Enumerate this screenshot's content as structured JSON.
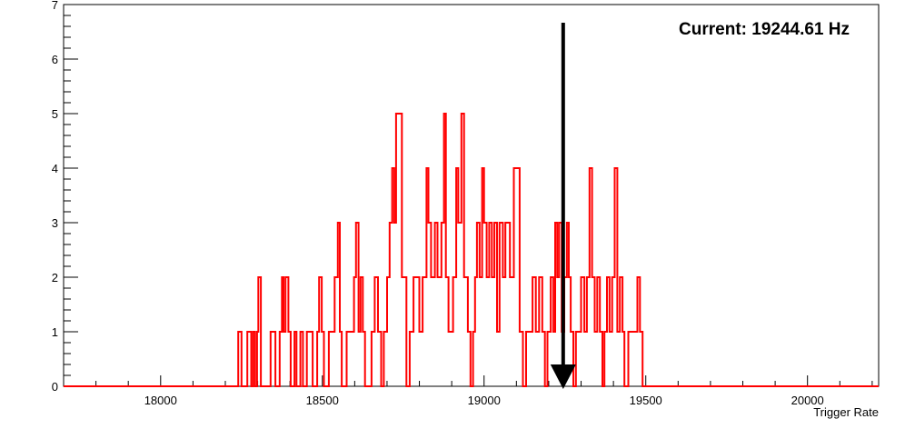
{
  "chart_data": {
    "type": "histogram",
    "title": "",
    "xlabel": "Trigger Rate",
    "ylabel": "",
    "xlim": [
      17700,
      20220
    ],
    "ylim": [
      0,
      7
    ],
    "x_ticks": [
      18000,
      18500,
      19000,
      19500,
      20000
    ],
    "y_ticks": [
      0,
      1,
      2,
      3,
      4,
      5,
      6,
      7
    ],
    "series": [
      {
        "color": "#ff0000",
        "steps": [
          {
            "x": 17700,
            "y": 0
          },
          {
            "x": 18240,
            "y": 1
          },
          {
            "x": 18250,
            "y": 0
          },
          {
            "x": 18268,
            "y": 1
          },
          {
            "x": 18280,
            "y": 0
          },
          {
            "x": 18286,
            "y": 1
          },
          {
            "x": 18292,
            "y": 0
          },
          {
            "x": 18298,
            "y": 1
          },
          {
            "x": 18302,
            "y": 2
          },
          {
            "x": 18310,
            "y": 0
          },
          {
            "x": 18340,
            "y": 1
          },
          {
            "x": 18355,
            "y": 0
          },
          {
            "x": 18368,
            "y": 1
          },
          {
            "x": 18375,
            "y": 2
          },
          {
            "x": 18380,
            "y": 1
          },
          {
            "x": 18386,
            "y": 2
          },
          {
            "x": 18395,
            "y": 1
          },
          {
            "x": 18402,
            "y": 0
          },
          {
            "x": 18414,
            "y": 1
          },
          {
            "x": 18420,
            "y": 0
          },
          {
            "x": 18432,
            "y": 1
          },
          {
            "x": 18440,
            "y": 0
          },
          {
            "x": 18452,
            "y": 1
          },
          {
            "x": 18470,
            "y": 0
          },
          {
            "x": 18484,
            "y": 1
          },
          {
            "x": 18490,
            "y": 2
          },
          {
            "x": 18498,
            "y": 1
          },
          {
            "x": 18505,
            "y": 0
          },
          {
            "x": 18520,
            "y": 1
          },
          {
            "x": 18538,
            "y": 2
          },
          {
            "x": 18548,
            "y": 3
          },
          {
            "x": 18554,
            "y": 1
          },
          {
            "x": 18560,
            "y": 0
          },
          {
            "x": 18575,
            "y": 1
          },
          {
            "x": 18598,
            "y": 2
          },
          {
            "x": 18604,
            "y": 3
          },
          {
            "x": 18612,
            "y": 1
          },
          {
            "x": 18618,
            "y": 2
          },
          {
            "x": 18625,
            "y": 1
          },
          {
            "x": 18632,
            "y": 0
          },
          {
            "x": 18652,
            "y": 1
          },
          {
            "x": 18662,
            "y": 2
          },
          {
            "x": 18672,
            "y": 1
          },
          {
            "x": 18682,
            "y": 0
          },
          {
            "x": 18690,
            "y": 1
          },
          {
            "x": 18700,
            "y": 2
          },
          {
            "x": 18708,
            "y": 3
          },
          {
            "x": 18716,
            "y": 4
          },
          {
            "x": 18722,
            "y": 3
          },
          {
            "x": 18728,
            "y": 5
          },
          {
            "x": 18746,
            "y": 2
          },
          {
            "x": 18760,
            "y": 0
          },
          {
            "x": 18770,
            "y": 1
          },
          {
            "x": 18782,
            "y": 2
          },
          {
            "x": 18800,
            "y": 1
          },
          {
            "x": 18810,
            "y": 2
          },
          {
            "x": 18822,
            "y": 4
          },
          {
            "x": 18828,
            "y": 3
          },
          {
            "x": 18836,
            "y": 2
          },
          {
            "x": 18848,
            "y": 3
          },
          {
            "x": 18856,
            "y": 2
          },
          {
            "x": 18868,
            "y": 3
          },
          {
            "x": 18876,
            "y": 5
          },
          {
            "x": 18882,
            "y": 2
          },
          {
            "x": 18890,
            "y": 1
          },
          {
            "x": 18904,
            "y": 2
          },
          {
            "x": 18914,
            "y": 4
          },
          {
            "x": 18920,
            "y": 3
          },
          {
            "x": 18930,
            "y": 5
          },
          {
            "x": 18938,
            "y": 2
          },
          {
            "x": 18950,
            "y": 1
          },
          {
            "x": 18958,
            "y": 0
          },
          {
            "x": 18966,
            "y": 1
          },
          {
            "x": 18972,
            "y": 2
          },
          {
            "x": 18978,
            "y": 3
          },
          {
            "x": 18986,
            "y": 2
          },
          {
            "x": 18994,
            "y": 4
          },
          {
            "x": 19000,
            "y": 3
          },
          {
            "x": 19008,
            "y": 2
          },
          {
            "x": 19016,
            "y": 3
          },
          {
            "x": 19024,
            "y": 2
          },
          {
            "x": 19032,
            "y": 3
          },
          {
            "x": 19040,
            "y": 1
          },
          {
            "x": 19048,
            "y": 3
          },
          {
            "x": 19058,
            "y": 2
          },
          {
            "x": 19066,
            "y": 3
          },
          {
            "x": 19080,
            "y": 2
          },
          {
            "x": 19092,
            "y": 4
          },
          {
            "x": 19110,
            "y": 1
          },
          {
            "x": 19120,
            "y": 0
          },
          {
            "x": 19130,
            "y": 1
          },
          {
            "x": 19150,
            "y": 2
          },
          {
            "x": 19160,
            "y": 1
          },
          {
            "x": 19170,
            "y": 2
          },
          {
            "x": 19180,
            "y": 1
          },
          {
            "x": 19188,
            "y": 0
          },
          {
            "x": 19196,
            "y": 1
          },
          {
            "x": 19206,
            "y": 2
          },
          {
            "x": 19214,
            "y": 1
          },
          {
            "x": 19220,
            "y": 3
          },
          {
            "x": 19226,
            "y": 2
          },
          {
            "x": 19232,
            "y": 3
          },
          {
            "x": 19240,
            "y": 1
          },
          {
            "x": 19248,
            "y": 2
          },
          {
            "x": 19256,
            "y": 3
          },
          {
            "x": 19262,
            "y": 2
          },
          {
            "x": 19268,
            "y": 1
          },
          {
            "x": 19276,
            "y": 0
          },
          {
            "x": 19284,
            "y": 1
          },
          {
            "x": 19300,
            "y": 2
          },
          {
            "x": 19310,
            "y": 1
          },
          {
            "x": 19318,
            "y": 2
          },
          {
            "x": 19326,
            "y": 4
          },
          {
            "x": 19334,
            "y": 2
          },
          {
            "x": 19342,
            "y": 1
          },
          {
            "x": 19350,
            "y": 2
          },
          {
            "x": 19358,
            "y": 1
          },
          {
            "x": 19366,
            "y": 0
          },
          {
            "x": 19372,
            "y": 1
          },
          {
            "x": 19380,
            "y": 2
          },
          {
            "x": 19388,
            "y": 1
          },
          {
            "x": 19396,
            "y": 2
          },
          {
            "x": 19404,
            "y": 4
          },
          {
            "x": 19412,
            "y": 1
          },
          {
            "x": 19420,
            "y": 2
          },
          {
            "x": 19428,
            "y": 1
          },
          {
            "x": 19434,
            "y": 0
          },
          {
            "x": 19446,
            "y": 1
          },
          {
            "x": 19474,
            "y": 2
          },
          {
            "x": 19482,
            "y": 1
          },
          {
            "x": 19490,
            "y": 0
          },
          {
            "x": 20220,
            "y": 0
          }
        ]
      }
    ],
    "annotations": [
      {
        "text": "Current: 19244.61 Hz",
        "arrow_x": 19244.61
      }
    ],
    "grid": false
  }
}
